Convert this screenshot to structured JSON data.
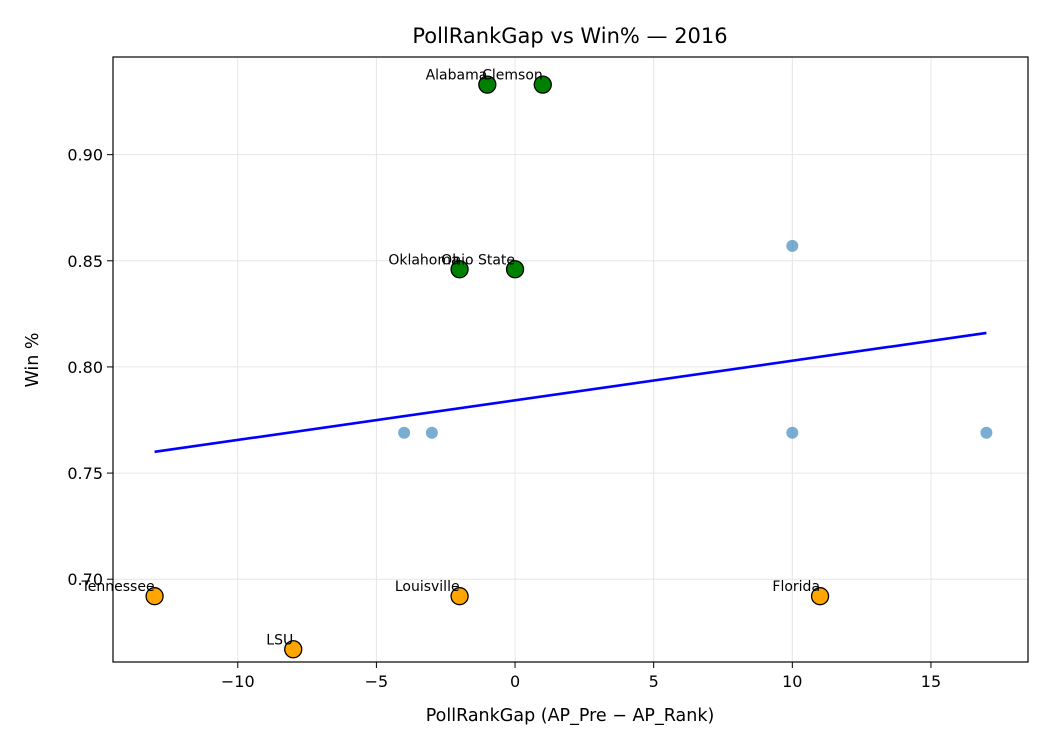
{
  "chart_data": {
    "type": "scatter",
    "title": "PollRankGap vs Win%  — 2016",
    "xlabel": "PollRankGap (AP_Pre − AP_Rank)",
    "ylabel": "Win %",
    "xlim": [
      -14.5,
      18.5
    ],
    "ylim": [
      0.661,
      0.946
    ],
    "xticks": [
      -10,
      -5,
      0,
      5,
      10,
      15
    ],
    "xtick_labels": [
      "−10",
      "−5",
      "0",
      "5",
      "10",
      "15"
    ],
    "yticks": [
      0.7,
      0.75,
      0.8,
      0.85,
      0.9
    ],
    "ytick_labels": [
      "0.70",
      "0.75",
      "0.80",
      "0.85",
      "0.90"
    ],
    "grid": true,
    "colors": {
      "other": "#1f77b4",
      "top": "#008000",
      "bottom": "#ffa500",
      "trend": "#0000ff",
      "marker_edge": "#000000"
    },
    "other_points": [
      {
        "x": -4,
        "y": 0.769
      },
      {
        "x": -3,
        "y": 0.769
      },
      {
        "x": 10,
        "y": 0.857
      },
      {
        "x": 10,
        "y": 0.769
      },
      {
        "x": 17,
        "y": 0.769
      }
    ],
    "top_points": [
      {
        "x": -1,
        "y": 0.933,
        "label": "Alabama"
      },
      {
        "x": 1,
        "y": 0.933,
        "label": "Clemson"
      },
      {
        "x": -2,
        "y": 0.846,
        "label": "Oklahoma"
      },
      {
        "x": 0,
        "y": 0.846,
        "label": "Ohio State"
      }
    ],
    "bottom_points": [
      {
        "x": -13,
        "y": 0.692,
        "label": "Tennessee"
      },
      {
        "x": -2,
        "y": 0.692,
        "label": "Louisville"
      },
      {
        "x": 11,
        "y": 0.692,
        "label": "Florida"
      },
      {
        "x": -8,
        "y": 0.667,
        "label": "LSU"
      }
    ],
    "trend_line": {
      "x": [
        -13,
        17
      ],
      "y": [
        0.76,
        0.816
      ]
    }
  }
}
